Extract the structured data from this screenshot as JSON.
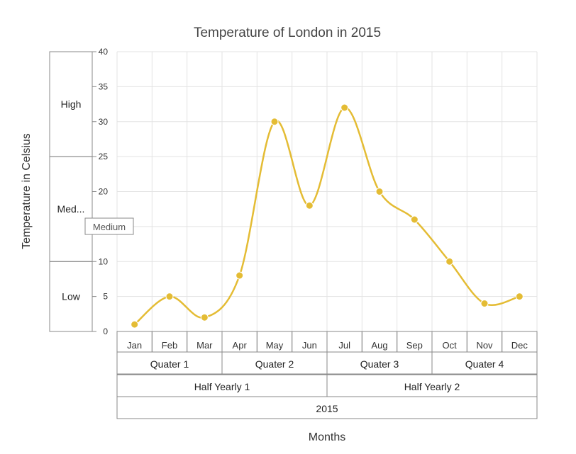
{
  "chart_data": {
    "type": "line",
    "title": "Temperature of London in 2015",
    "xlabel": "Months",
    "ylabel": "Temperature in Celsius",
    "ylim": [
      0,
      40
    ],
    "y_ticks": [
      0,
      5,
      10,
      15,
      20,
      25,
      30,
      35,
      40
    ],
    "categories": [
      "Jan",
      "Feb",
      "Mar",
      "Apr",
      "May",
      "Jun",
      "Jul",
      "Aug",
      "Sep",
      "Oct",
      "Nov",
      "Dec"
    ],
    "series": [
      {
        "values": [
          1,
          5,
          2,
          8,
          30,
          18,
          32,
          20,
          16,
          10,
          4,
          5
        ],
        "color": "#e4bc34"
      }
    ],
    "grid": true,
    "x_multilevel": [
      [
        {
          "label": "Quater 1",
          "start": 0,
          "end": 3
        },
        {
          "label": "Quater 2",
          "start": 3,
          "end": 6
        },
        {
          "label": "Quater 3",
          "start": 6,
          "end": 9
        },
        {
          "label": "Quater 4",
          "start": 9,
          "end": 12
        }
      ],
      [
        {
          "label": "Half Yearly 1",
          "start": 0,
          "end": 6
        },
        {
          "label": "Half Yearly 2",
          "start": 6,
          "end": 12
        }
      ],
      [
        {
          "label": "2015",
          "start": 0,
          "end": 12
        }
      ]
    ],
    "y_multilevel": [
      {
        "label": "High",
        "start": 25,
        "end": 40
      },
      {
        "label": "Med...",
        "start": 10,
        "end": 25
      },
      {
        "label": "Low",
        "start": 0,
        "end": 10
      }
    ],
    "tooltip": {
      "text": "Medium"
    }
  }
}
